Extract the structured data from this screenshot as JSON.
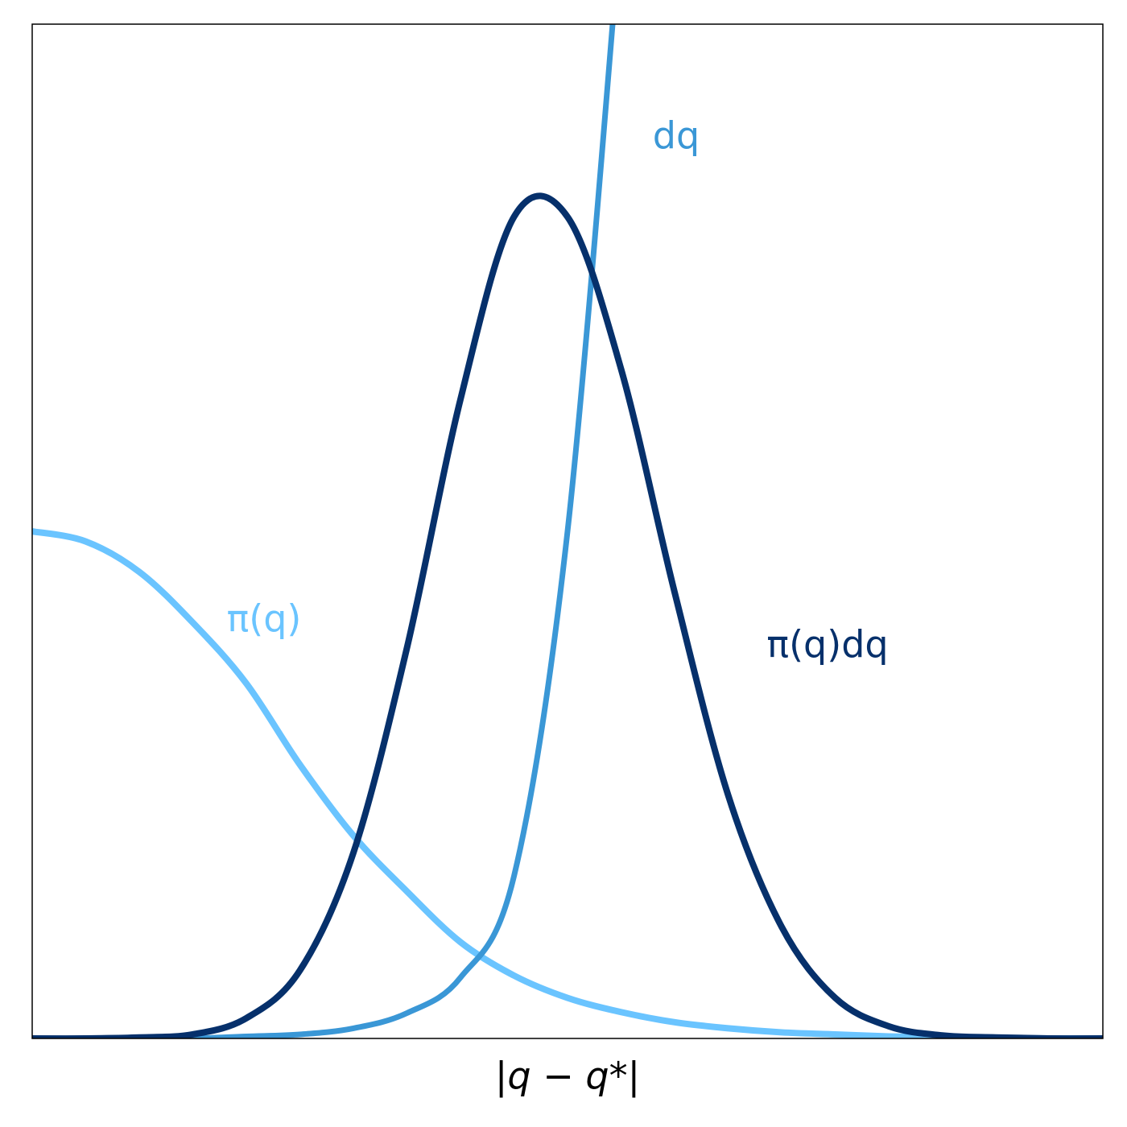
{
  "chart_data": {
    "type": "line",
    "xlabel": "|q − q*|",
    "x": [
      0,
      0.5,
      1,
      1.5,
      2,
      2.5,
      3,
      3.5,
      4,
      4.5,
      5,
      5.5,
      6,
      6.5,
      7,
      7.5,
      8,
      8.5,
      9,
      9.5,
      10
    ],
    "xlim": [
      0,
      10
    ],
    "ylim": [
      0,
      1
    ],
    "grid": false,
    "legend": "inline",
    "series": [
      {
        "name": "π(q)",
        "color": "#6ac4ff",
        "values": [
          0.5,
          0.49,
          0.46,
          0.41,
          0.35,
          0.27,
          0.2,
          0.145,
          0.095,
          0.062,
          0.04,
          0.026,
          0.016,
          0.01,
          0.006,
          0.004,
          0.002,
          0.001,
          0.0005,
          0,
          0
        ]
      },
      {
        "name": "dq",
        "color": "#3a97d6",
        "values": [
          0,
          0,
          0,
          0,
          0.002,
          0.004,
          0.01,
          0.025,
          0.06,
          0.16,
          0.5,
          1.1,
          null,
          null,
          null,
          null,
          null,
          null,
          null,
          null,
          null
        ]
      },
      {
        "name": "π(q)dq",
        "color": "#06306b",
        "values": [
          0,
          0,
          0.001,
          0.004,
          0.02,
          0.067,
          0.183,
          0.385,
          0.63,
          0.81,
          0.81,
          0.66,
          0.44,
          0.24,
          0.11,
          0.04,
          0.012,
          0.003,
          0.001,
          0,
          0
        ]
      }
    ]
  }
}
